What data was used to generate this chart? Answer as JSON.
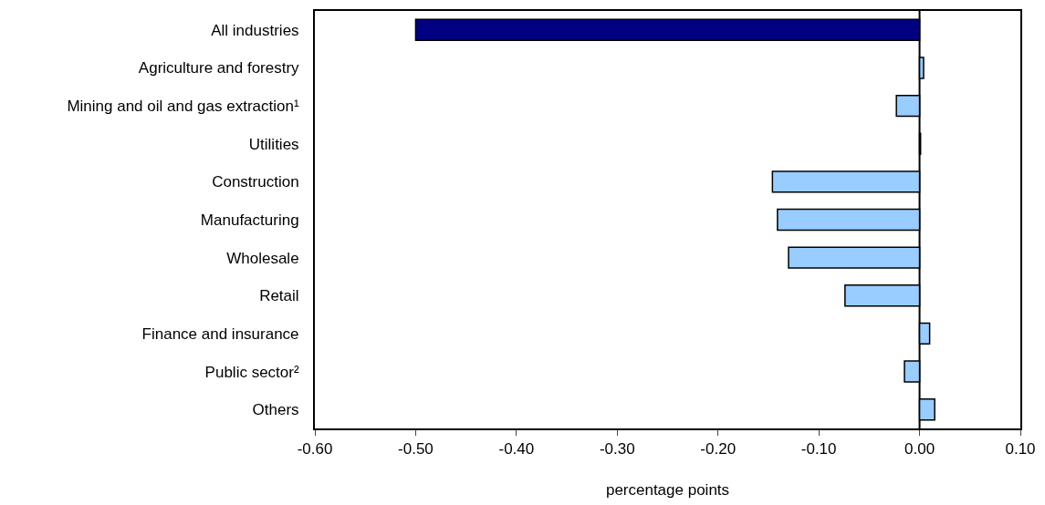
{
  "chart_data": {
    "type": "bar",
    "orientation": "horizontal",
    "xlabel": "percentage points",
    "categories": [
      "All industries",
      "Agriculture and forestry",
      "Mining and oil and gas extraction¹",
      "Utilities",
      "Construction",
      "Manufacturing",
      "Wholesale",
      "Retail",
      "Finance and insurance",
      "Public sector²",
      "Others"
    ],
    "values": [
      -0.5,
      0.004,
      -0.023,
      0.001,
      -0.146,
      -0.141,
      -0.13,
      -0.074,
      0.01,
      -0.015,
      0.015
    ],
    "colors": [
      "#000080",
      "#99ccff",
      "#99ccff",
      "#99ccff",
      "#99ccff",
      "#99ccff",
      "#99ccff",
      "#99ccff",
      "#99ccff",
      "#99ccff",
      "#99ccff"
    ],
    "xlim": [
      -0.6,
      0.1
    ],
    "xticks": [
      {
        "value": -0.6,
        "label": "-0.60"
      },
      {
        "value": -0.5,
        "label": "-0.50"
      },
      {
        "value": -0.4,
        "label": "-0.40"
      },
      {
        "value": -0.3,
        "label": "-0.30"
      },
      {
        "value": -0.2,
        "label": "-0.20"
      },
      {
        "value": -0.1,
        "label": "-0.10"
      },
      {
        "value": 0,
        "label": "0.00"
      },
      {
        "value": 0.1,
        "label": "0.10"
      }
    ],
    "ref_lines": [
      {
        "axis": "x",
        "value": 0,
        "color": "#000000"
      }
    ]
  }
}
